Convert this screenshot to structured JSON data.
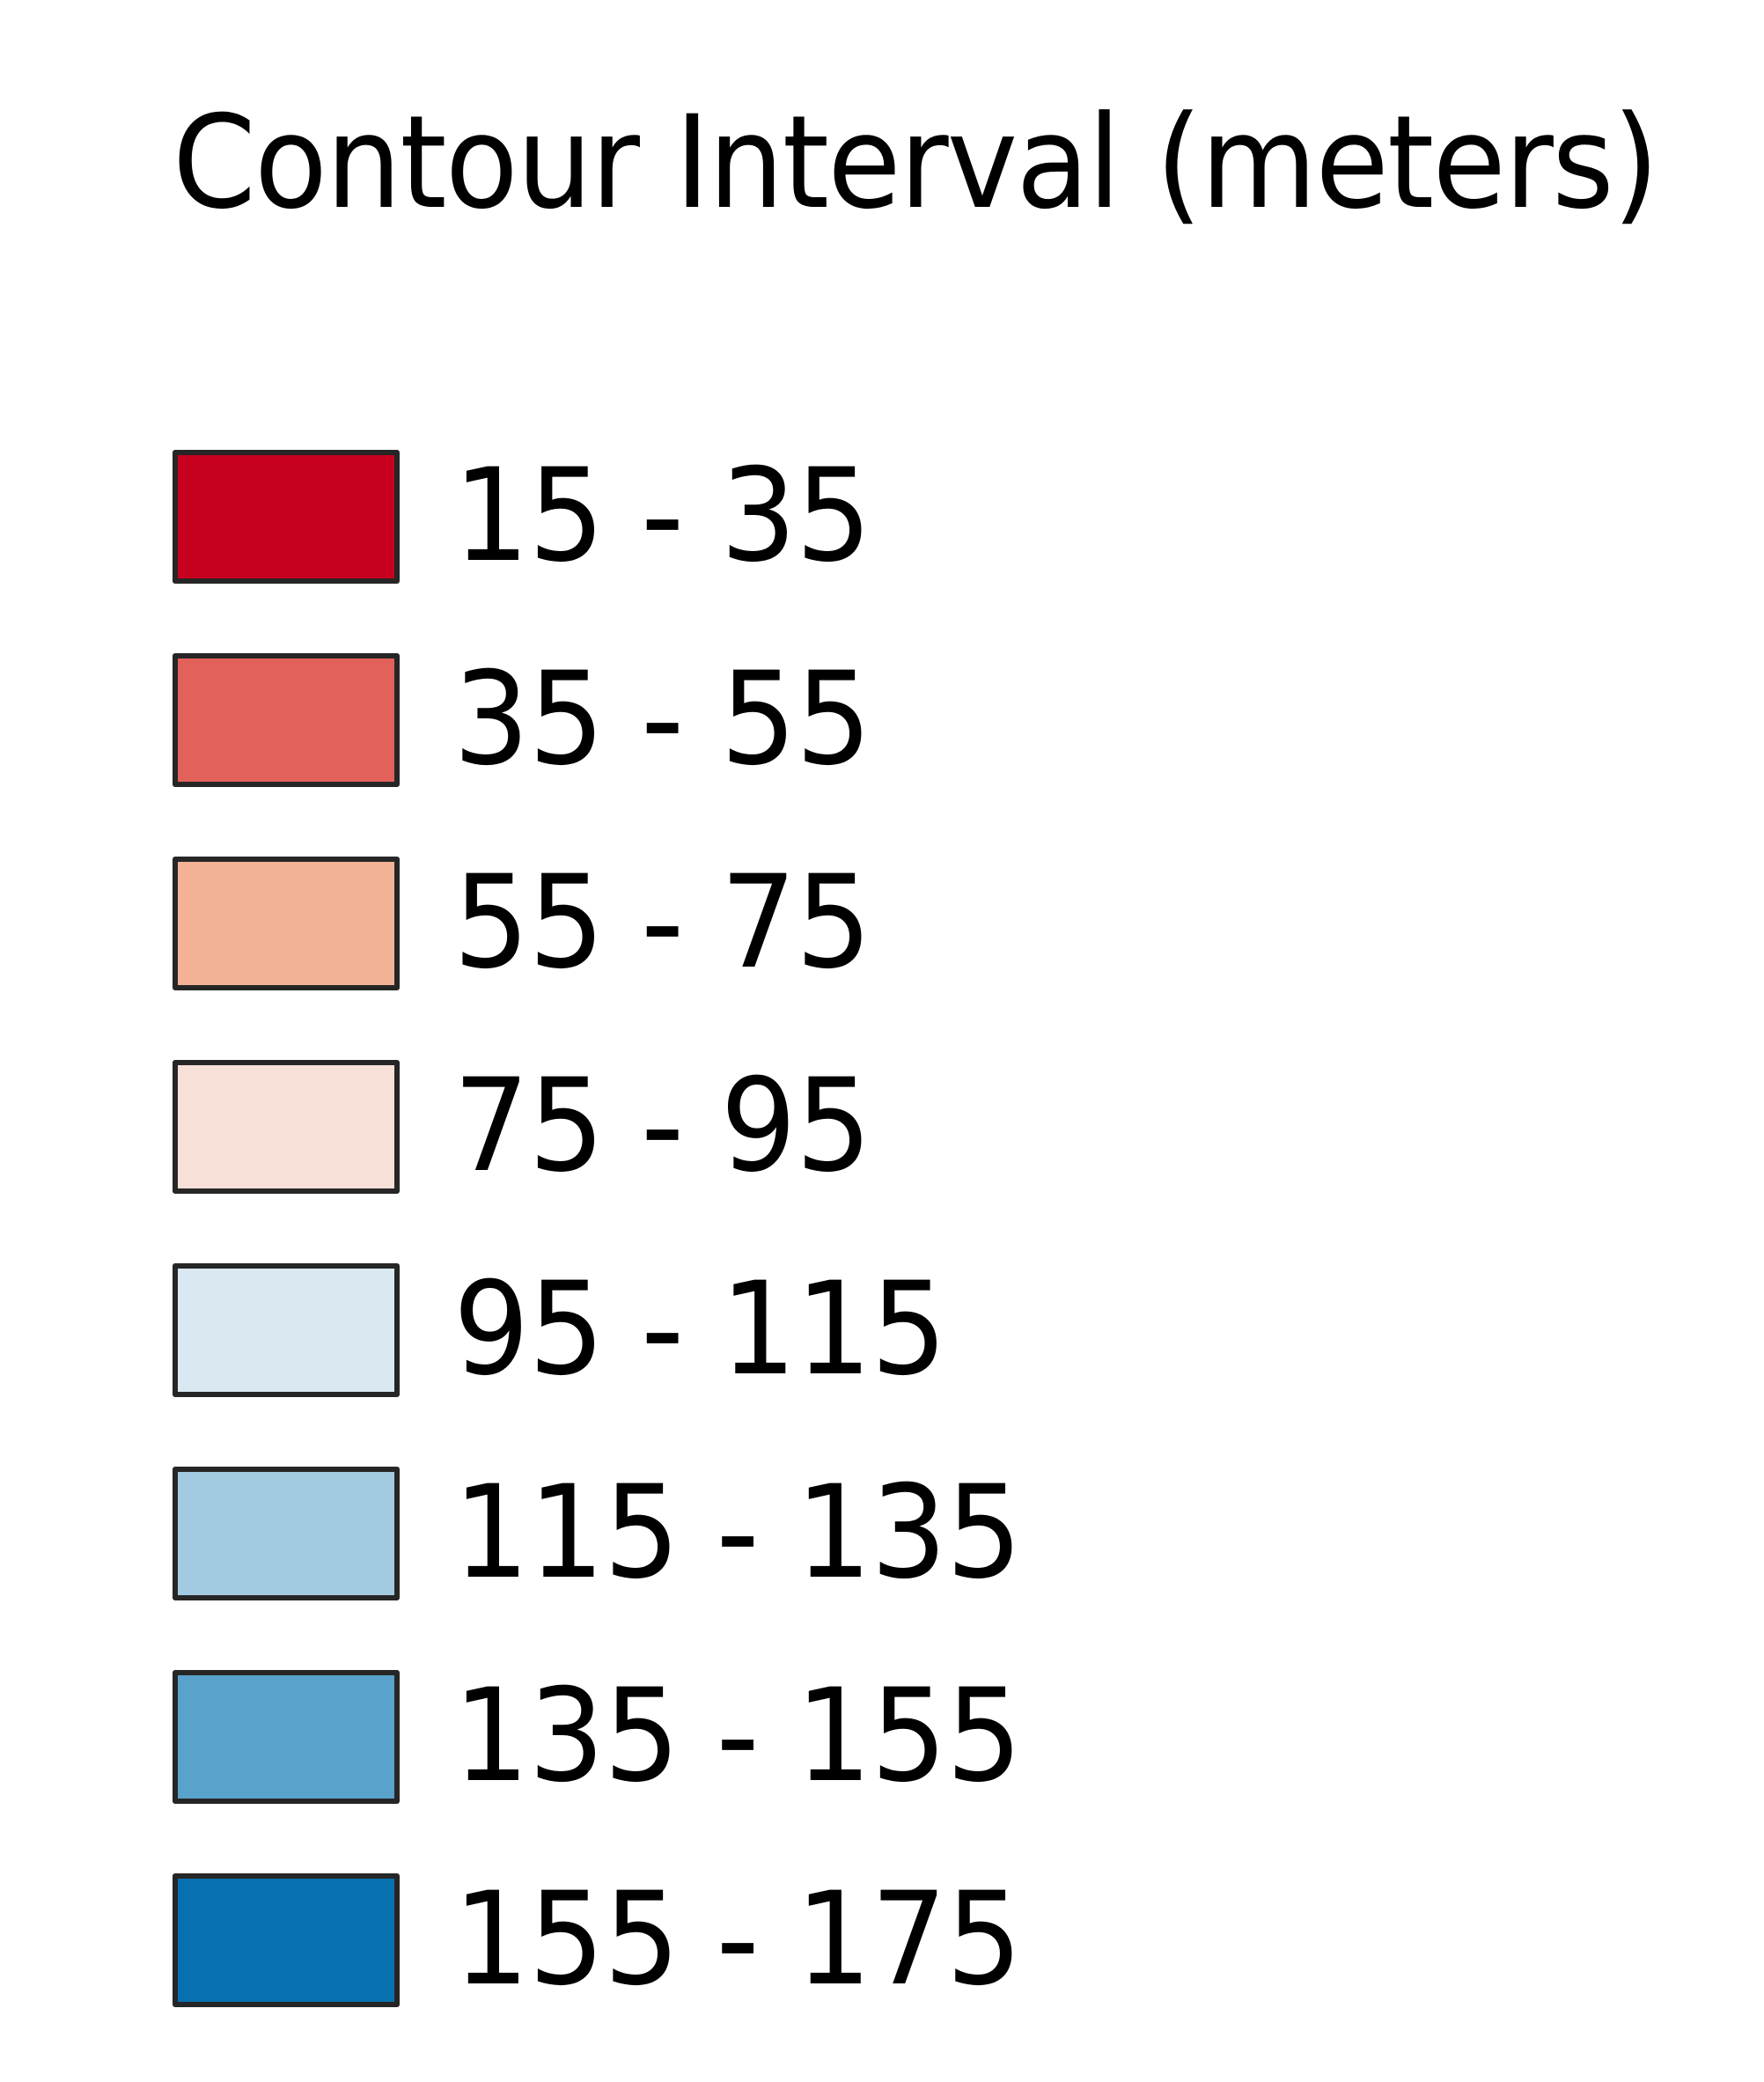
{
  "legend": {
    "title": "Contour Interval (meters)",
    "items": [
      {
        "label": "15 - 35",
        "color": "#c8001f"
      },
      {
        "label": "35 - 55",
        "color": "#e2615a"
      },
      {
        "label": "55 - 75",
        "color": "#f3b296"
      },
      {
        "label": "75 - 95",
        "color": "#f7e0d8"
      },
      {
        "label": "95 - 115",
        "color": "#d9e8f1"
      },
      {
        "label": "115 - 135",
        "color": "#a2cbe1"
      },
      {
        "label": "135 - 155",
        "color": "#58a2cb"
      },
      {
        "label": "155 - 175",
        "color": "#0871b0"
      }
    ]
  }
}
